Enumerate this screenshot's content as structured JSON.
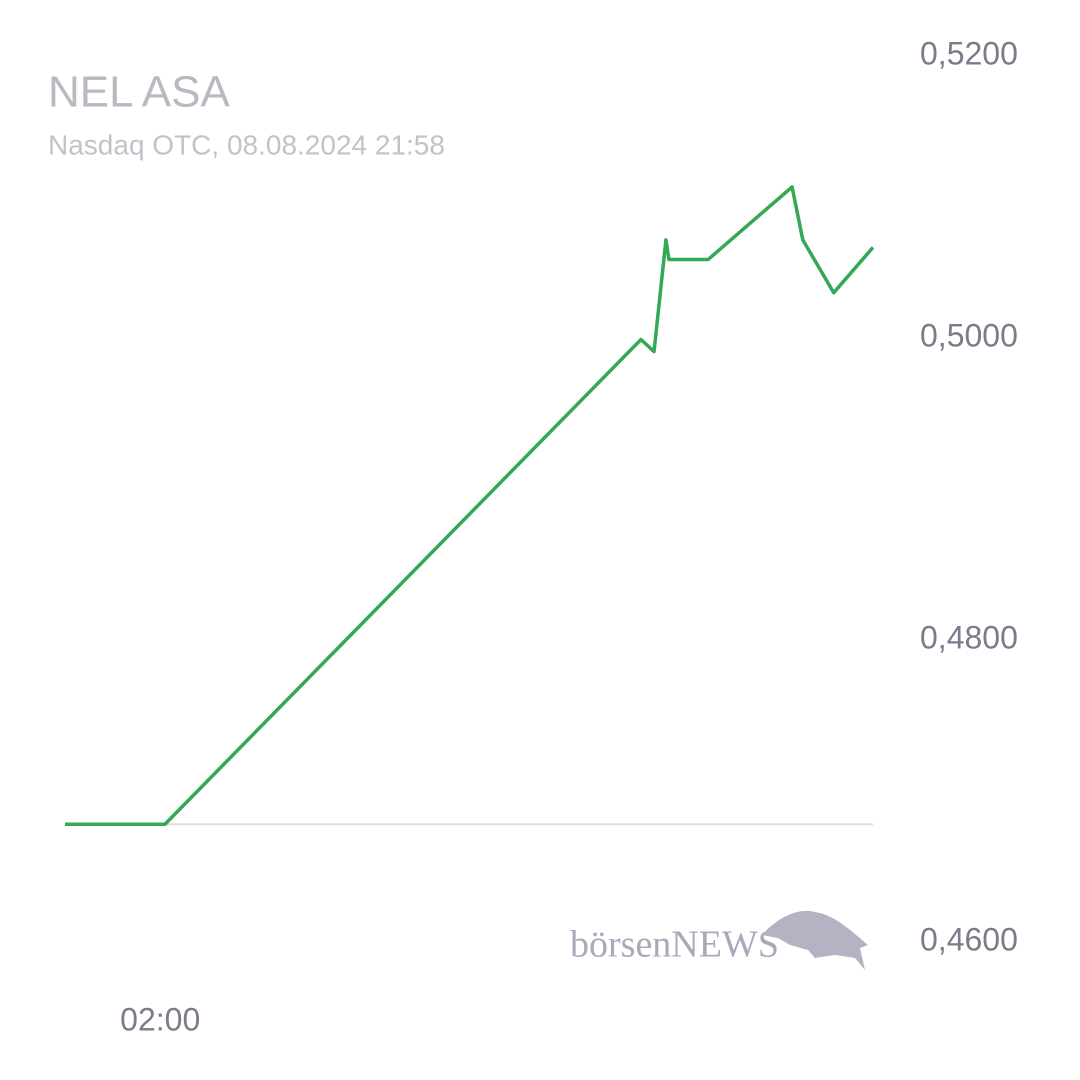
{
  "chart_data": {
    "type": "line",
    "title": "NEL ASA",
    "subtitle": "Nasdaq OTC, 08.08.2024 21:58",
    "watermark": "börsenNEWS",
    "x": [
      -40,
      128,
      928,
      950,
      970,
      975,
      1041,
      1182,
      1200,
      1252,
      1318
    ],
    "series": [
      {
        "name": "NEL ASA",
        "color": "#34a853",
        "values": [
          0.4678,
          0.4678,
          0.4999,
          0.4991,
          0.5065,
          0.5052,
          0.5052,
          0.51,
          0.5065,
          0.503,
          0.506
        ]
      }
    ],
    "reference_line": 0.4678,
    "xlim": [
      -40,
      1318
    ],
    "xticks": [
      {
        "value": 120,
        "label": "02:00"
      }
    ],
    "ylim": [
      0.46,
      0.52
    ],
    "yticks": [
      {
        "value": 0.46,
        "label": "0,4600"
      },
      {
        "value": 0.48,
        "label": "0,4800"
      },
      {
        "value": 0.5,
        "label": "0,5000"
      },
      {
        "value": 0.52,
        "label": "0,5200"
      }
    ],
    "grid": false
  }
}
